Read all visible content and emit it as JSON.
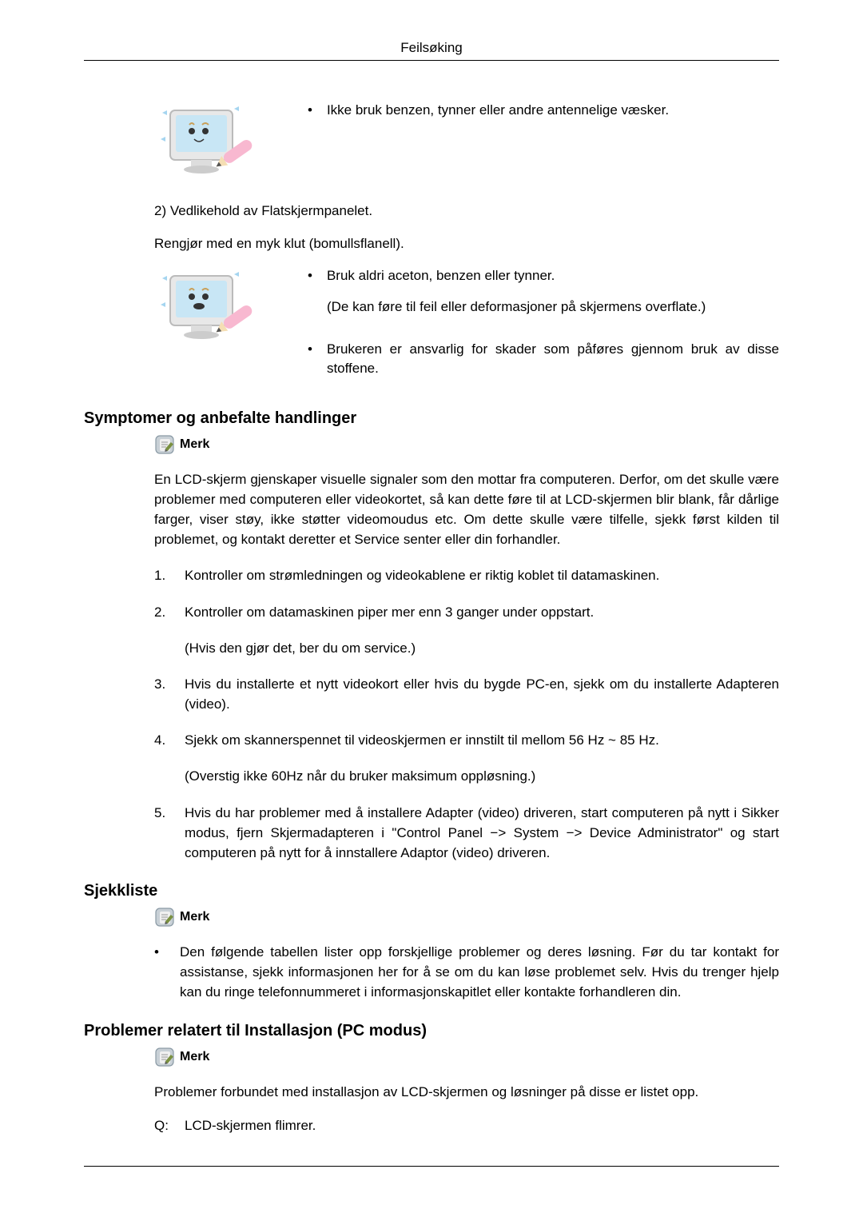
{
  "header": {
    "title": "Feilsøking"
  },
  "sec1": {
    "bullet1": "Ikke bruk benzen, tynner eller andre antennelige væsker.",
    "line2": "2) Vedlikehold av Flatskjermpanelet.",
    "line3": "Rengjør med en myk klut (bomullsflanell).",
    "bullet2": "Bruk aldri aceton, benzen eller tynner.",
    "bullet2_sub": "(De kan føre til feil eller deformasjoner på skjermens overflate.)",
    "bullet3": "Brukeren er ansvarlig for skader som påføres gjennom bruk av disse stoffene."
  },
  "sec2": {
    "heading": "Symptomer og anbefalte handlinger",
    "merk": "Merk",
    "para": "En LCD-skjerm gjenskaper visuelle signaler som den mottar fra computeren. Derfor, om det skulle være problemer med computeren eller videokortet, så kan dette føre til at LCD-skjermen blir blank, får dårlige farger, viser støy, ikke støtter videomoudus etc. Om dette skulle være tilfelle, sjekk først kilden til problemet, og kontakt deretter et Service senter eller din forhandler.",
    "items": [
      {
        "num": "1.",
        "text": "Kontroller om strømledningen og videokablene er riktig koblet til datamaskinen.",
        "sub": ""
      },
      {
        "num": "2.",
        "text": "Kontroller om datamaskinen piper mer enn 3 ganger under oppstart.",
        "sub": "(Hvis den gjør det, ber du om service.)"
      },
      {
        "num": "3.",
        "text": "Hvis du installerte et nytt videokort eller hvis du bygde PC-en, sjekk om du installerte Adapteren (video).",
        "sub": ""
      },
      {
        "num": "4.",
        "text": "Sjekk om skannerspennet til videoskjermen er innstilt til mellom 56 Hz ~ 85 Hz.",
        "sub": "(Overstig ikke 60Hz når du bruker maksimum oppløsning.)"
      },
      {
        "num": "5.",
        "text": "Hvis du har problemer med å installere Adapter (video) driveren, start computeren på nytt i Sikker modus, fjern Skjermadapteren i \"Control Panel −> System −> Device Administrator\" og start computeren på nytt for å innstallere Adaptor (video) driveren.",
        "sub": ""
      }
    ]
  },
  "sec3": {
    "heading": "Sjekkliste",
    "merk": "Merk",
    "bullet": "Den følgende tabellen lister opp forskjellige problemer og deres løsning. Før du tar kontakt for assistanse, sjekk informasjonen her for å se om du kan løse problemet selv. Hvis du trenger hjelp kan du ringe telefonnummeret i informasjonskapitlet eller kontakte forhandleren din."
  },
  "sec4": {
    "heading": "Problemer relatert til Installasjon (PC modus)",
    "merk": "Merk",
    "para": "Problemer forbundet med installasjon av LCD-skjermen og løsninger på disse er listet opp.",
    "qlabel": "Q:",
    "qtext": "LCD-skjermen flimrer."
  },
  "icons": {
    "monitor_bg": "#d5e9f5",
    "monitor_frame": "#c8c8c8",
    "pencil_pink": "#f8b8d0",
    "pencil_tip": "#f5deb3",
    "merk_bg": "#9aa8b0",
    "merk_pencil": "#7a9040"
  }
}
